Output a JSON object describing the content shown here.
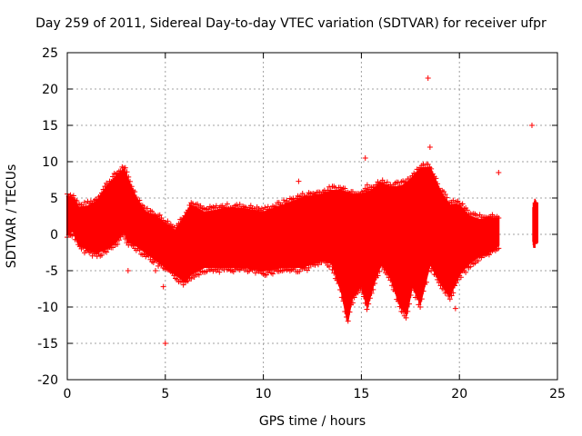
{
  "chart_data": {
    "type": "scatter",
    "title": "Day 259 of 2011, Sidereal Day-to-day VTEC variation (SDTVAR) for receiver ufpr",
    "xlabel": "GPS time / hours",
    "ylabel": "SDTVAR / TECUs",
    "xlim": [
      0,
      25
    ],
    "ylim": [
      -20,
      25
    ],
    "xticks": [
      0,
      5,
      10,
      15,
      20,
      25
    ],
    "yticks": [
      -20,
      -15,
      -10,
      -5,
      0,
      5,
      10,
      15,
      20,
      25
    ],
    "grid": true,
    "marker": "+",
    "color": "#ff0000",
    "series": [
      {
        "name": "SDTVAR",
        "envelope_upper": [
          [
            0.0,
            5.2
          ],
          [
            0.3,
            5.0
          ],
          [
            0.6,
            3.6
          ],
          [
            1.0,
            3.8
          ],
          [
            1.5,
            4.5
          ],
          [
            2.0,
            6.5
          ],
          [
            2.5,
            8.0
          ],
          [
            2.9,
            9.0
          ],
          [
            3.1,
            7.5
          ],
          [
            3.5,
            5.0
          ],
          [
            4.0,
            3.0
          ],
          [
            4.5,
            2.5
          ],
          [
            5.0,
            1.5
          ],
          [
            5.5,
            0.5
          ],
          [
            6.0,
            2.5
          ],
          [
            6.3,
            4.0
          ],
          [
            7.0,
            3.0
          ],
          [
            8.0,
            3.5
          ],
          [
            9.0,
            3.5
          ],
          [
            10.0,
            3.0
          ],
          [
            11.0,
            4.0
          ],
          [
            12.0,
            5.0
          ],
          [
            13.0,
            5.5
          ],
          [
            13.5,
            6.0
          ],
          [
            14.0,
            6.0
          ],
          [
            14.5,
            5.5
          ],
          [
            15.0,
            5.5
          ],
          [
            15.5,
            6.0
          ],
          [
            16.0,
            7.0
          ],
          [
            16.5,
            6.5
          ],
          [
            17.0,
            6.5
          ],
          [
            17.5,
            7.5
          ],
          [
            18.0,
            9.0
          ],
          [
            18.5,
            9.2
          ],
          [
            19.0,
            6.0
          ],
          [
            19.5,
            4.0
          ],
          [
            20.0,
            4.0
          ],
          [
            20.5,
            2.5
          ],
          [
            21.0,
            2.0
          ],
          [
            21.5,
            2.2
          ],
          [
            22.0,
            2.2
          ]
        ],
        "envelope_lower": [
          [
            0.0,
            0.0
          ],
          [
            0.3,
            0.5
          ],
          [
            0.6,
            -1.5
          ],
          [
            1.0,
            -2.0
          ],
          [
            1.5,
            -2.5
          ],
          [
            2.0,
            -2.0
          ],
          [
            2.5,
            -1.0
          ],
          [
            2.9,
            0.5
          ],
          [
            3.1,
            -1.0
          ],
          [
            3.5,
            -1.5
          ],
          [
            4.0,
            -2.5
          ],
          [
            4.5,
            -3.5
          ],
          [
            5.0,
            -4.5
          ],
          [
            5.5,
            -5.5
          ],
          [
            6.0,
            -6.5
          ],
          [
            6.3,
            -5.5
          ],
          [
            7.0,
            -4.5
          ],
          [
            8.0,
            -4.5
          ],
          [
            9.0,
            -4.5
          ],
          [
            10.0,
            -5.0
          ],
          [
            11.0,
            -4.5
          ],
          [
            12.0,
            -4.5
          ],
          [
            13.0,
            -3.5
          ],
          [
            13.5,
            -4.0
          ],
          [
            14.0,
            -8.0
          ],
          [
            14.3,
            -12.0
          ],
          [
            14.5,
            -9.0
          ],
          [
            15.0,
            -7.0
          ],
          [
            15.3,
            -10.0
          ],
          [
            15.6,
            -7.0
          ],
          [
            16.0,
            -4.0
          ],
          [
            16.5,
            -6.0
          ],
          [
            17.0,
            -10.0
          ],
          [
            17.3,
            -11.0
          ],
          [
            17.6,
            -7.0
          ],
          [
            18.0,
            -9.5
          ],
          [
            18.5,
            -4.0
          ],
          [
            19.0,
            -6.5
          ],
          [
            19.5,
            -8.5
          ],
          [
            20.0,
            -5.5
          ],
          [
            20.5,
            -4.0
          ],
          [
            21.0,
            -3.0
          ],
          [
            21.5,
            -2.5
          ],
          [
            22.0,
            -1.5
          ]
        ],
        "late_segment": {
          "x_range": [
            23.75,
            24.0
          ],
          "upper": 5.0,
          "lower": -2.0
        },
        "outliers": [
          [
            18.4,
            21.5
          ],
          [
            23.7,
            15.0
          ],
          [
            15.2,
            10.5
          ],
          [
            18.5,
            12.0
          ],
          [
            22.0,
            8.5
          ],
          [
            11.8,
            7.3
          ],
          [
            4.9,
            -7.2
          ],
          [
            5.0,
            -15.0
          ],
          [
            19.8,
            -10.2
          ],
          [
            3.1,
            -5.0
          ],
          [
            4.5,
            -5.0
          ],
          [
            2.0,
            5.0
          ],
          [
            15.3,
            6.8
          ]
        ]
      }
    ]
  }
}
